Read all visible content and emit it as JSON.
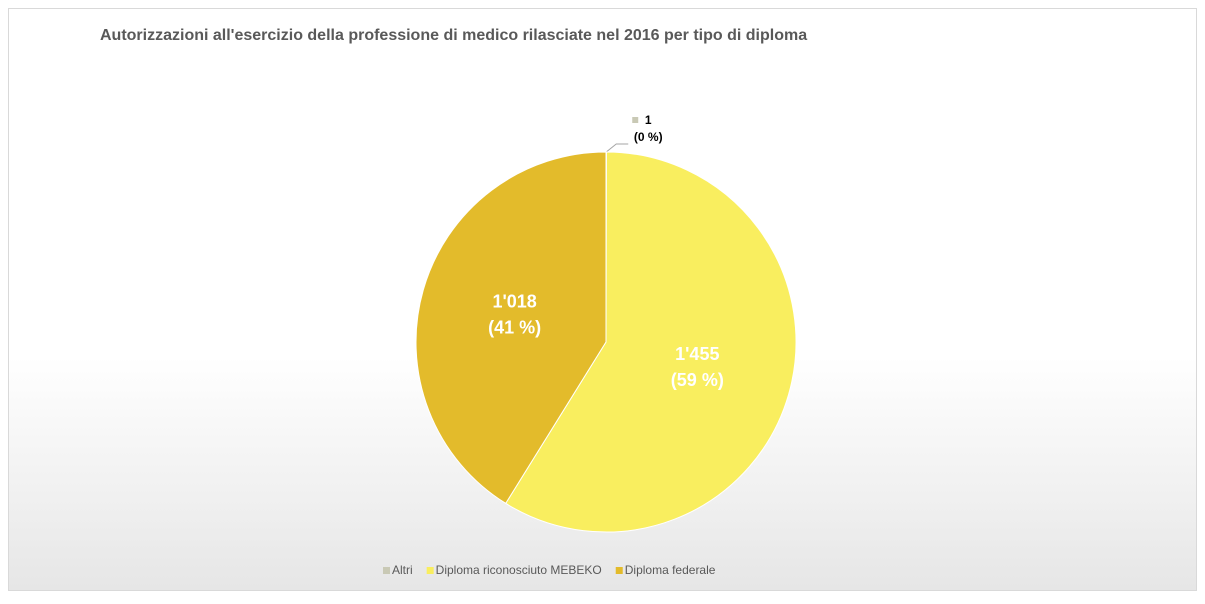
{
  "chart_data": {
    "type": "pie",
    "title": "Autorizzazioni all'esercizio della professione di medico rilasciate nel 2016 per tipo di diploma",
    "categories": [
      "Altri",
      "Diploma riconosciuto MEBEKO",
      "Diploma federale"
    ],
    "values": [
      1,
      1455,
      1018
    ],
    "value_labels": [
      "1",
      "1'455",
      "1'018"
    ],
    "percent_labels": [
      "(0 %)",
      "(59 %)",
      "(41 %)"
    ],
    "colors": [
      "#c9c9b5",
      "#f9ee5f",
      "#e3bb2b"
    ],
    "legend": "bottom"
  }
}
